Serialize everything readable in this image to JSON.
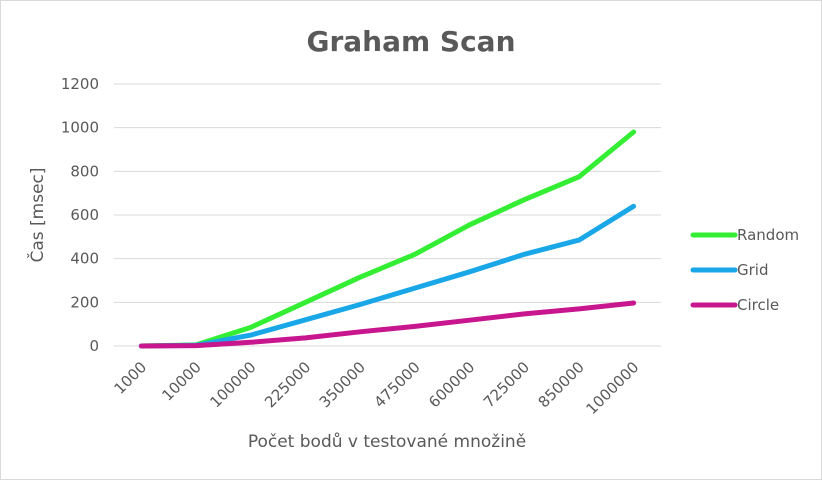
{
  "chart_data": {
    "type": "line",
    "title": "Graham Scan",
    "xlabel": "Počet bodů v testované množině",
    "ylabel": "Čas [msec]",
    "categories": [
      "1000",
      "10000",
      "100000",
      "225000",
      "350000",
      "475000",
      "600000",
      "725000",
      "850000",
      "1000000"
    ],
    "ylim": [
      0,
      1200
    ],
    "yticks": [
      0,
      200,
      400,
      600,
      800,
      1000,
      1200
    ],
    "grid": true,
    "legend_position": "right",
    "series": [
      {
        "name": "Random",
        "color": "#33ee33",
        "values": [
          0,
          5,
          85,
          200,
          315,
          420,
          555,
          670,
          775,
          980
        ]
      },
      {
        "name": "Grid",
        "color": "#1aa7e8",
        "values": [
          0,
          3,
          50,
          120,
          190,
          265,
          340,
          420,
          485,
          640
        ]
      },
      {
        "name": "Circle",
        "color": "#c8168f",
        "values": [
          0,
          2,
          17,
          37,
          65,
          90,
          118,
          147,
          170,
          197
        ]
      }
    ]
  }
}
